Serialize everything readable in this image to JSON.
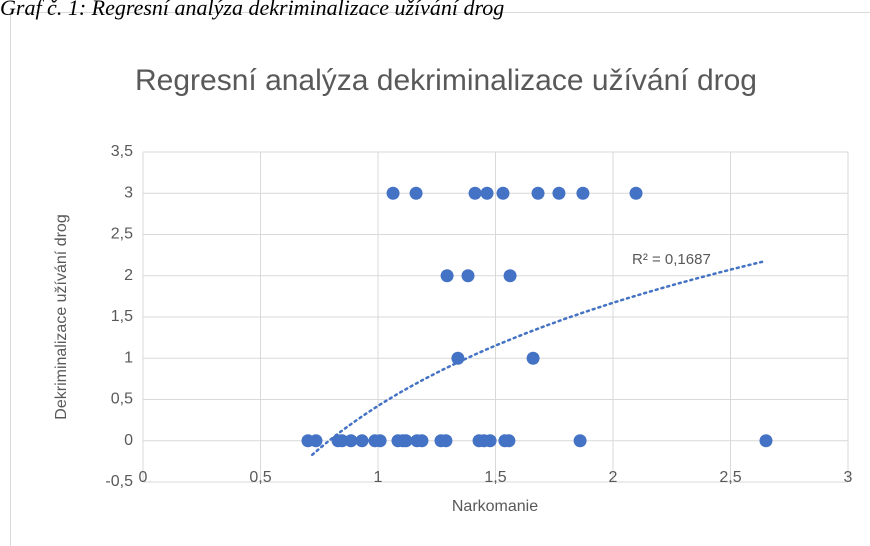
{
  "caption": "Graf č. 1: Regresní analýza dekriminalizace užívání drog",
  "chart_data": {
    "type": "scatter",
    "title": "Regresní analýza dekriminalizace užívání drog",
    "x_label": "Narkomanie",
    "y_label": "Dekriminalizace užívání drog",
    "color": "#4472c4",
    "grid": true,
    "x": [
      1.064,
      1.162,
      1.413,
      1.464,
      1.532,
      1.681,
      1.77,
      1.872,
      2.098,
      1.294,
      1.383,
      1.562,
      1.34,
      1.66,
      0.702,
      0.736,
      0.83,
      0.847,
      0.885,
      0.932,
      0.987,
      1.009,
      1.085,
      1.106,
      1.119,
      1.166,
      1.187,
      1.268,
      1.289,
      1.43,
      1.451,
      1.477,
      1.54,
      1.557,
      1.86,
      2.651
    ],
    "values": [
      3,
      3,
      3,
      3,
      3,
      3,
      3,
      3,
      3,
      2,
      2,
      2,
      1,
      1,
      0,
      0,
      0,
      0,
      0,
      0,
      0,
      0,
      0,
      0,
      0,
      0,
      0,
      0,
      0,
      0,
      0,
      0,
      0,
      0,
      0,
      0
    ],
    "xlim": [
      0,
      3
    ],
    "ylim": [
      -0.5,
      3.5
    ],
    "xticks": [
      0,
      {
        "value": 0.5,
        "label": "0,5"
      },
      1,
      {
        "value": 1.5,
        "label": "1,5"
      },
      2,
      {
        "value": 2.5,
        "label": "2,5"
      },
      3
    ],
    "yticks": [
      {
        "value": -0.5,
        "label": "-0,5"
      },
      0,
      {
        "value": 0.5,
        "label": "0,5"
      },
      1,
      {
        "value": 1.5,
        "label": "1,5"
      },
      2,
      {
        "value": 2.5,
        "label": "2,5"
      },
      3,
      {
        "value": 3.5,
        "label": "3,5"
      }
    ],
    "trendline": {
      "type": "logarithmic",
      "label": "R² = 0,1687",
      "a": 1.803,
      "b": 0.422,
      "x_range": [
        0.72,
        2.65
      ],
      "color": "#4472c4"
    }
  }
}
